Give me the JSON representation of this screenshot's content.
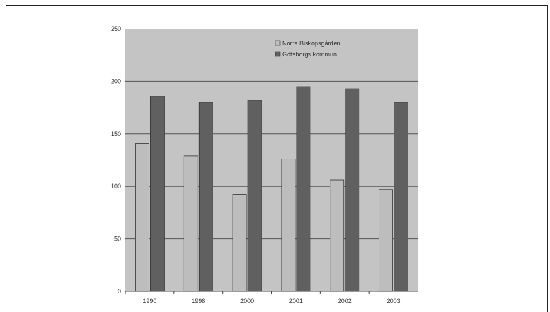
{
  "chart_data": {
    "type": "bar",
    "categories": [
      "1990",
      "1998",
      "2000",
      "2001",
      "2002",
      "2003"
    ],
    "series": [
      {
        "name": "Norra Biskopsgården",
        "values": [
          141,
          129,
          92,
          126,
          106,
          97
        ],
        "color": "#bdbdbd"
      },
      {
        "name": "Göteborgs kommun",
        "values": [
          186,
          180,
          182,
          195,
          193,
          180
        ],
        "color": "#606060"
      }
    ],
    "ylim": [
      0,
      250
    ],
    "yticks": [
      0,
      50,
      100,
      150,
      200,
      250
    ],
    "grid": true,
    "legend_position": "top-right",
    "plot_background": "#c4c4c4"
  }
}
